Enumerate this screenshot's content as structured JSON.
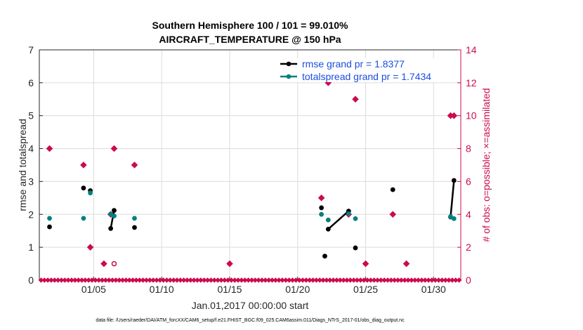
{
  "chart_data": {
    "type": "line",
    "title": "Southern Hemisphere 100 / 101 = 99.010%",
    "subtitle": "AIRCRAFT_TEMPERATURE @ 150 hPa",
    "xlabel": "Jan.01,2017 00:00:00 start",
    "ylabel_left": "rmse and totalspread",
    "ylabel_right": "# of obs: o=possible; ×=assimilated",
    "x_ticks": [
      "01/05",
      "01/10",
      "01/15",
      "01/20",
      "01/25",
      "01/30"
    ],
    "x_tick_days": [
      5,
      10,
      15,
      20,
      25,
      30
    ],
    "xlim": [
      1,
      32
    ],
    "ylim_left": [
      0,
      7
    ],
    "y_ticks_left": [
      "0",
      "1",
      "2",
      "3",
      "4",
      "5",
      "6",
      "7"
    ],
    "ylim_right": [
      0,
      14
    ],
    "y_ticks_right": [
      "0",
      "2",
      "4",
      "6",
      "8",
      "10",
      "12",
      "14"
    ],
    "legend_position": "top-right",
    "grid": true,
    "colors": {
      "rmse": "#000000",
      "spread": "#008080",
      "obs": "#cc0a4f",
      "legend_text": "#1a4fe0"
    },
    "series": [
      {
        "name": "rmse grand pr = 1.8377",
        "points": [
          [
            1.75,
            1.62
          ],
          [
            4.25,
            2.8
          ],
          [
            4.75,
            2.72
          ],
          [
            6.25,
            1.57
          ],
          [
            6.5,
            2.12
          ],
          [
            8.0,
            1.6
          ],
          [
            21.75,
            2.2
          ],
          [
            22.0,
            0.73
          ],
          [
            22.25,
            1.55
          ],
          [
            23.75,
            2.1
          ],
          [
            24.25,
            0.98
          ],
          [
            27.0,
            2.75
          ],
          [
            31.25,
            1.92
          ],
          [
            31.5,
            3.03
          ]
        ],
        "segments_after_index": [
          3,
          8,
          12
        ]
      },
      {
        "name": "totalspread grand pr = 1.7434",
        "points": [
          [
            1.75,
            1.88
          ],
          [
            4.25,
            1.88
          ],
          [
            4.75,
            2.65
          ],
          [
            6.25,
            2.01
          ],
          [
            6.5,
            1.95
          ],
          [
            8.0,
            1.88
          ],
          [
            21.75,
            2.0
          ],
          [
            22.25,
            1.83
          ],
          [
            23.75,
            2.02
          ],
          [
            24.25,
            1.87
          ],
          [
            31.25,
            1.93
          ],
          [
            31.5,
            1.87
          ]
        ],
        "segments_after_index": [
          3,
          10
        ]
      }
    ],
    "obs_assimilated": [
      [
        1.75,
        8
      ],
      [
        4.25,
        7
      ],
      [
        4.75,
        2
      ],
      [
        5.75,
        1
      ],
      [
        6.25,
        4
      ],
      [
        6.5,
        8
      ],
      [
        8.0,
        7
      ],
      [
        15.0,
        1
      ],
      [
        21.75,
        5
      ],
      [
        22.25,
        12
      ],
      [
        23.75,
        4
      ],
      [
        24.25,
        11
      ],
      [
        25.0,
        1
      ],
      [
        27.0,
        4
      ],
      [
        28.0,
        1
      ],
      [
        31.25,
        10
      ],
      [
        31.5,
        10
      ]
    ],
    "obs_possible": [
      [
        6.5,
        1
      ]
    ],
    "zero_obs_count": 124,
    "footer": "data file: /Users/raeder/DAI/ATM_forcXX/CAM6_setup/f.e21.FHIST_BGC.f09_025.CAM6assim.011/Diags_NTrS_2017-01/obs_diag_output.nc"
  }
}
